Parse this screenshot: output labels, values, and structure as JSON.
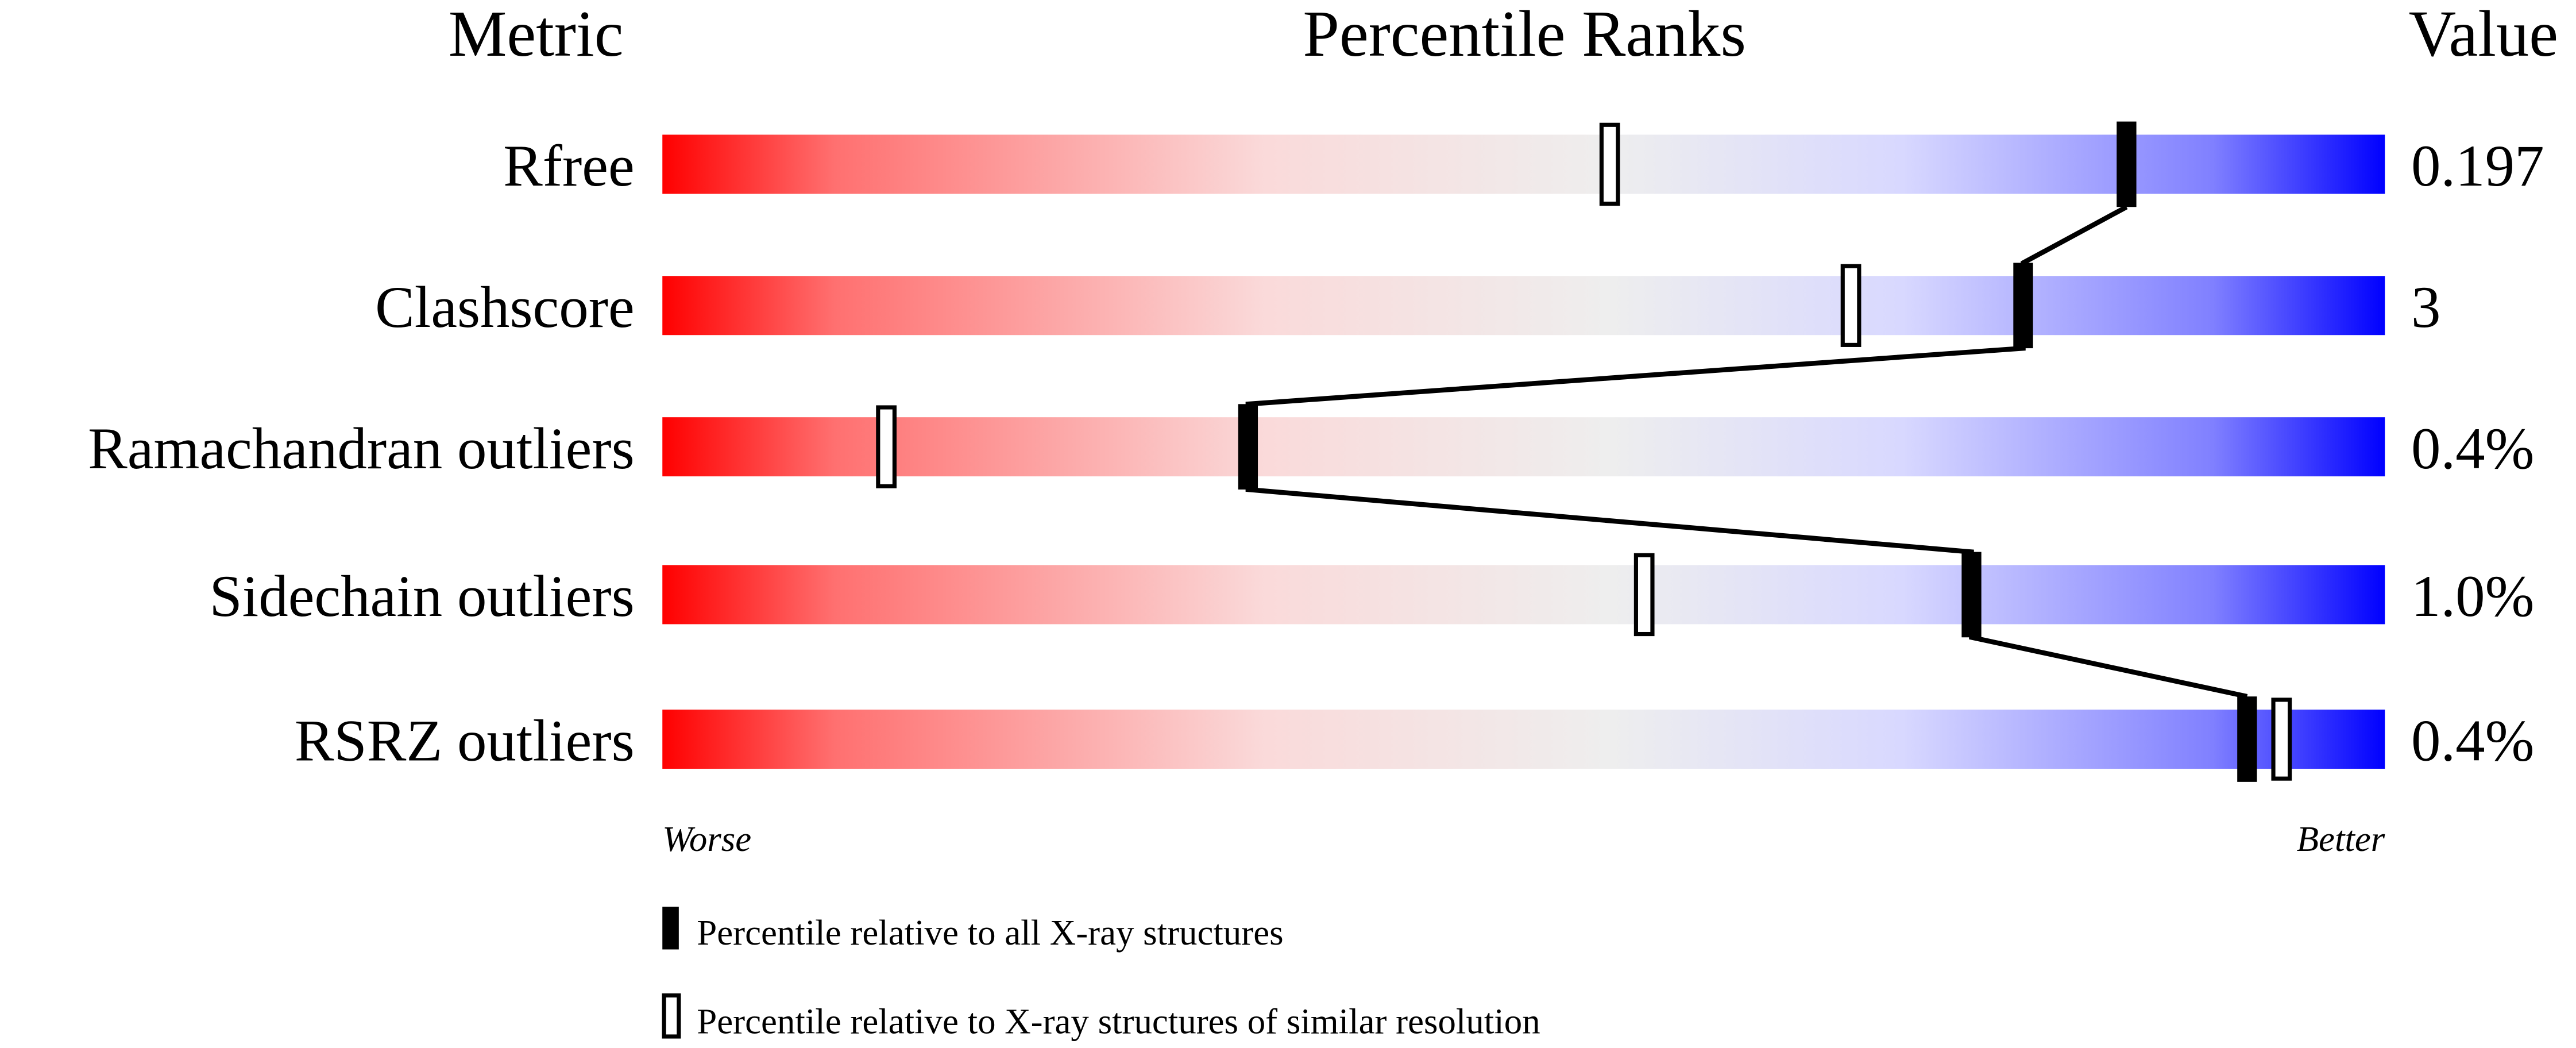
{
  "chart_data": {
    "type": "percentile-ranks",
    "headers": {
      "metric": "Metric",
      "ranks": "Percentile Ranks",
      "value": "Value"
    },
    "xlim": [
      0,
      100
    ],
    "axis_labels": {
      "left": "Worse",
      "right": "Better"
    },
    "gradient_colors": [
      "#ff0000",
      "#ff7070",
      "#fadada",
      "#eeeeee",
      "#d8d8ff",
      "#8080ff",
      "#0000ff"
    ],
    "rows": [
      {
        "metric": "Rfree",
        "value": "0.197",
        "percentile_all": 85,
        "percentile_similar": 55
      },
      {
        "metric": "Clashscore",
        "value": "3",
        "percentile_all": 79,
        "percentile_similar": 69
      },
      {
        "metric": "Ramachandran outliers",
        "value": "0.4%",
        "percentile_all": 34,
        "percentile_similar": 13
      },
      {
        "metric": "Sidechain outliers",
        "value": "1.0%",
        "percentile_all": 76,
        "percentile_similar": 57
      },
      {
        "metric": "RSRZ outliers",
        "value": "0.4%",
        "percentile_all": 92,
        "percentile_similar": 94
      }
    ],
    "legend": [
      {
        "marker": "filled",
        "label": "Percentile relative to all X-ray structures"
      },
      {
        "marker": "open",
        "label": "Percentile relative to X-ray structures of similar resolution"
      }
    ]
  }
}
